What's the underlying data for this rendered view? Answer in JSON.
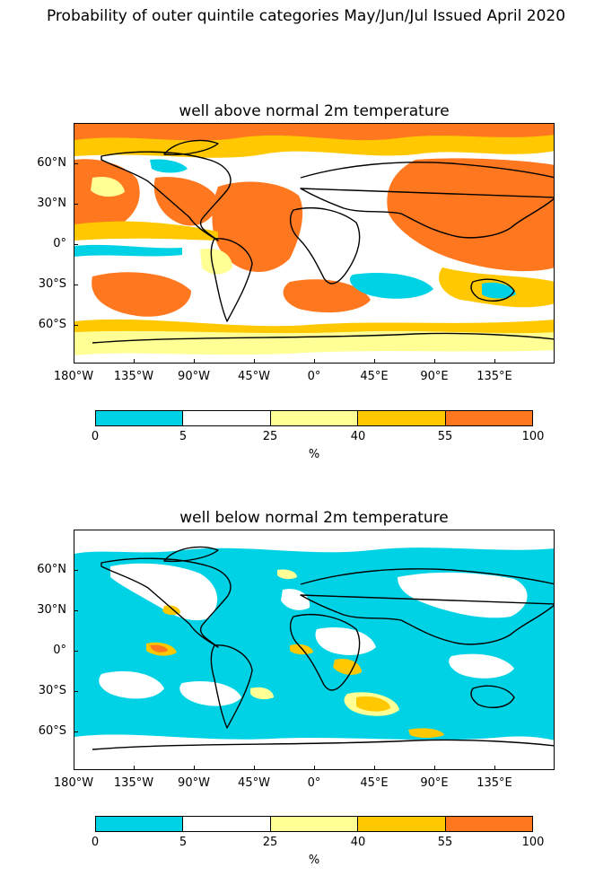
{
  "suptitle": "Probability of outer quintile categories May/Jun/Jul Issued April 2020",
  "colors": {
    "cyan": "#00d2e6",
    "white": "#ffffff",
    "light_yellow": "#ffff96",
    "gold": "#ffc800",
    "orange": "#ff7820",
    "coast": "#000000"
  },
  "colorbar": {
    "ticks": [
      "0",
      "5",
      "25",
      "40",
      "55",
      "100"
    ],
    "unit": "%",
    "segment_colors": [
      "#00d2e6",
      "#ffffff",
      "#ffff96",
      "#ffc800",
      "#ff7820"
    ]
  },
  "axes": {
    "y_ticks": [
      "60°N",
      "30°N",
      "0°",
      "30°S",
      "60°S"
    ],
    "x_ticks": [
      "180°W",
      "135°W",
      "90°W",
      "45°W",
      "0°",
      "45°E",
      "90°E",
      "135°E"
    ]
  },
  "panels": [
    {
      "title": "well above normal 2m temperature",
      "dominant_category": "55-100"
    },
    {
      "title": "well below normal 2m temperature",
      "dominant_category": "0-5"
    }
  ]
}
